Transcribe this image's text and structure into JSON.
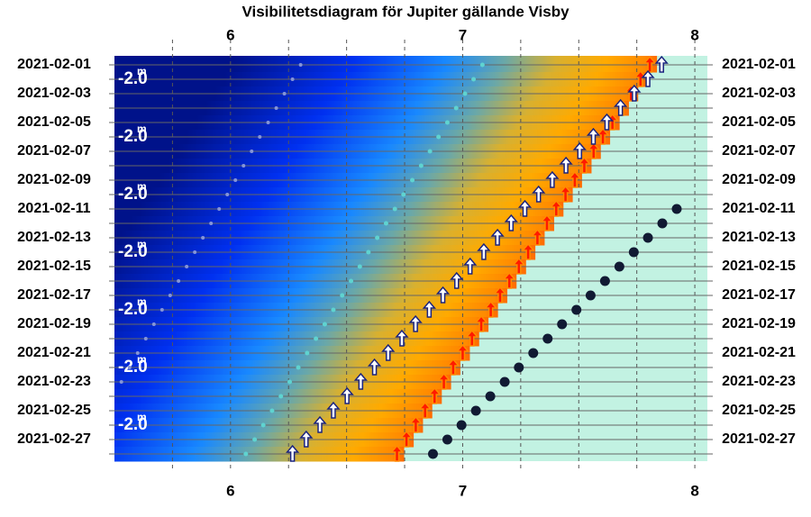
{
  "chart_data": {
    "type": "visibility",
    "title": "Visibilitetsdiagram för Jupiter gällande Visby",
    "categories": [
      "2021-02-01",
      null,
      "2021-02-03",
      null,
      "2021-02-05",
      null,
      "2021-02-07",
      null,
      "2021-02-09",
      null,
      "2021-02-11",
      null,
      "2021-02-13",
      null,
      "2021-02-15",
      null,
      "2021-02-17",
      null,
      "2021-02-19",
      null,
      "2021-02-21",
      null,
      "2021-02-23",
      null,
      "2021-02-25",
      null,
      "2021-02-27",
      null
    ],
    "xlim": [
      5.5,
      8.054
    ],
    "xticks": [
      6,
      7,
      8
    ],
    "minor_xticks": [
      5.75,
      6.25,
      6.5,
      6.75,
      7.25,
      7.5,
      7.75
    ],
    "grid": true,
    "series": [
      {
        "marker": "arrow",
        "color": "#ffffff",
        "edge": "#1a237e",
        "values": [
          7.857,
          7.798,
          7.739,
          7.68,
          7.621,
          7.563,
          7.504,
          7.445,
          7.386,
          7.327,
          7.268,
          7.209,
          7.15,
          7.091,
          7.032,
          6.974,
          6.915,
          6.856,
          6.797,
          6.738,
          6.679,
          6.62,
          6.561,
          6.502,
          6.443,
          6.385,
          6.326,
          6.267
        ]
      },
      {
        "marker": "arrow",
        "color": "#ff1a00",
        "edge": "#ff8c00",
        "values": [
          7.806,
          7.766,
          7.725,
          7.685,
          7.645,
          7.604,
          7.564,
          7.524,
          7.483,
          7.443,
          7.403,
          7.363,
          7.322,
          7.282,
          7.242,
          7.201,
          7.161,
          7.121,
          7.08,
          7.04,
          7.0,
          6.959,
          6.919,
          6.879,
          6.838,
          6.798,
          6.758,
          6.717
        ]
      },
      {
        "marker": "dot",
        "size": 5.5,
        "color": "#111a33",
        "values": [
          null,
          null,
          null,
          null,
          null,
          null,
          null,
          null,
          null,
          null,
          7.922,
          7.86,
          7.798,
          7.737,
          7.675,
          7.613,
          7.551,
          7.49,
          7.428,
          7.366,
          7.304,
          7.242,
          7.181,
          7.119,
          7.057,
          6.995,
          6.934,
          6.872
        ]
      },
      {
        "marker": "dot",
        "size": 2.5,
        "color": "#5fd3d0",
        "values": [
          7.085,
          7.047,
          7.01,
          6.972,
          6.934,
          6.896,
          6.859,
          6.821,
          6.783,
          6.745,
          6.708,
          6.67,
          6.632,
          6.594,
          6.557,
          6.519,
          6.481,
          6.443,
          6.406,
          6.368,
          6.33,
          6.292,
          6.255,
          6.217,
          6.179,
          6.141,
          6.104,
          6.066
        ]
      },
      {
        "marker": "dot",
        "size": 2,
        "color": "#8595d8",
        "values": [
          6.302,
          6.267,
          6.232,
          6.197,
          6.162,
          6.126,
          6.091,
          6.056,
          6.021,
          5.986,
          5.951,
          5.916,
          5.881,
          5.846,
          5.811,
          5.776,
          5.74,
          5.705,
          5.67,
          5.635,
          5.6,
          5.565,
          5.53,
          null,
          null,
          null,
          null,
          null
        ]
      }
    ],
    "magnitude": {
      "values": [
        null,
        -2.0,
        null,
        null,
        null,
        -2.0,
        null,
        null,
        null,
        -2.0,
        null,
        null,
        null,
        -2.0,
        null,
        null,
        null,
        -2.0,
        null,
        null,
        null,
        -2.0,
        null,
        null,
        null,
        -2.0,
        null,
        null
      ],
      "value_labels": [
        null,
        "-2.0",
        null,
        null,
        null,
        "-2.0",
        null,
        null,
        null,
        "-2.0",
        null,
        null,
        null,
        "-2.0",
        null,
        null,
        null,
        "-2.0",
        null,
        null,
        null,
        "-2.0",
        null,
        null,
        null,
        "-2.0",
        null,
        null
      ],
      "unit": "m"
    }
  }
}
